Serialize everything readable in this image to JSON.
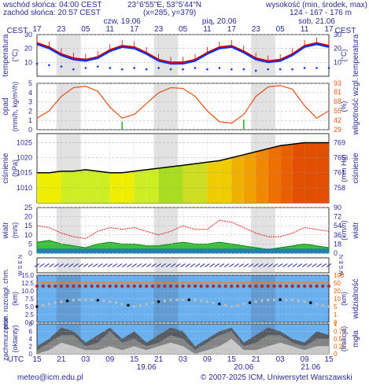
{
  "header": {
    "sunrise": "wschód słońca: 04:00 CEST",
    "sunset": "zachód słońca: 20:57 CEST",
    "coords": "23°6'55\"E, 53°5'44\"N",
    "grid": "(x=285, y=379)",
    "height_title": "wysokość (min, środek, max)",
    "height_values": "124 - 167 - 176 m",
    "tz_left": "CEST",
    "tz_right": "CEST"
  },
  "top_axis": {
    "hours": [
      "17",
      "23",
      "05",
      "11",
      "17",
      "23",
      "05",
      "11",
      "17",
      "23",
      "05",
      "11",
      "17"
    ],
    "days": [
      "czw, 19.06",
      "pią, 20.06",
      "sob, 21.06"
    ]
  },
  "bottom_axis": {
    "tz": "UTC",
    "hours": [
      "15",
      "21",
      "03",
      "09",
      "15",
      "21",
      "03",
      "09",
      "15",
      "21",
      "03",
      "09",
      "15"
    ],
    "days": [
      "19.06",
      "20.06",
      "21.06"
    ]
  },
  "footer": {
    "email": "meteo@icm.edu.pl",
    "copyright": "© 2007-2025 ICM, Uniwersytet Warszawski"
  },
  "colors": {
    "text": "#2b2b8c",
    "temp_max": "#cc0000",
    "temp_mean": "#0033ff",
    "humidity": "#e05a20",
    "pressure_line": "#000000",
    "wind_mean": "#008800",
    "gust": "#dd2222",
    "sky": "#6ab0ee"
  },
  "chart_data": [
    {
      "type": "line",
      "name": "temperature",
      "ylabel_left": "temperatura",
      "unit_left": "(°C)",
      "ylabel_right": "temperatura",
      "unit_right": "(°C)",
      "ylim": [
        0,
        30
      ],
      "yticks": [
        10,
        20,
        30
      ],
      "x_hours_from_start": [
        0,
        3,
        6,
        9,
        12,
        15,
        18,
        21,
        24,
        27,
        30,
        33,
        36,
        39,
        42,
        45,
        48,
        51,
        54,
        57,
        60,
        63,
        66,
        69,
        72
      ],
      "series": [
        {
          "values": [
            24,
            21,
            16,
            13,
            12,
            14,
            19,
            22,
            21,
            17,
            12,
            10,
            10,
            12,
            17,
            21,
            22,
            18,
            13,
            11,
            12,
            16,
            22,
            24,
            22
          ]
        },
        {
          "values": [
            23,
            20,
            15,
            12,
            11,
            13,
            18,
            21,
            20,
            16,
            11,
            9,
            9,
            11,
            16,
            20,
            21,
            17,
            12,
            10,
            11,
            15,
            21,
            23,
            21
          ]
        },
        {
          "values": [
            9,
            8,
            7,
            5,
            6,
            7,
            6,
            5,
            6,
            5,
            6,
            5,
            5,
            6,
            5,
            6,
            5,
            5,
            4,
            5,
            5,
            5,
            6,
            6,
            6
          ]
        }
      ]
    },
    {
      "type": "line",
      "name": "precipitation-humidity",
      "ylabel_left": "opad",
      "unit_left": "(mm/h, kg/m²/h)",
      "ylabel_right": "wilgotność wzgl.",
      "unit_right": "(%)",
      "ylim_left": [
        0,
        5
      ],
      "yticks_left": [
        0,
        1,
        2,
        3,
        4,
        5
      ],
      "ylim_right": [
        29,
        93
      ],
      "yticks_right": [
        29,
        42,
        55,
        68,
        81,
        93
      ],
      "series": [
        {
          "name": "wilgotność",
          "values": [
            45,
            55,
            75,
            87,
            89,
            82,
            60,
            45,
            50,
            65,
            80,
            87,
            86,
            75,
            55,
            40,
            38,
            50,
            75,
            88,
            90,
            85,
            62,
            45,
            55
          ]
        },
        {
          "name": "opad",
          "values": [
            0,
            0,
            0,
            0,
            0,
            0,
            0,
            0.2,
            0,
            0,
            0,
            0,
            0,
            0,
            0,
            0,
            0,
            0.4,
            0,
            0,
            0,
            0,
            0,
            0,
            0
          ]
        }
      ]
    },
    {
      "type": "area",
      "name": "pressure",
      "ylabel_left": "ciśnienie",
      "unit_left": "(hPa)",
      "ylabel_right": "ciśnienie",
      "unit_right": "(mm Hg)",
      "ylim": [
        1005,
        1028
      ],
      "yticks_left": [
        1010,
        1015,
        1020,
        1025
      ],
      "yticks_right": [
        758,
        761,
        765,
        769
      ],
      "values": [
        1015,
        1015,
        1015.5,
        1015.5,
        1016,
        1015.5,
        1015,
        1015,
        1015.5,
        1016,
        1016.5,
        1017,
        1017.5,
        1018,
        1018.5,
        1019,
        1020,
        1021,
        1022,
        1023,
        1024,
        1024.5,
        1025,
        1025,
        1025
      ]
    },
    {
      "type": "area",
      "name": "wind",
      "ylabel_left": "wiatr",
      "unit_left": "(m/s)",
      "ylabel_right": "wiatr",
      "unit_right": "(km/h)",
      "ylim": [
        0,
        25
      ],
      "yticks_left": [
        0,
        5,
        10,
        15,
        20,
        25
      ],
      "yticks_right": [
        0,
        18,
        36,
        54,
        72,
        90
      ],
      "series": [
        {
          "name": "średni",
          "values": [
            6,
            7,
            5,
            4,
            3,
            5,
            6,
            5,
            5,
            4,
            4,
            5,
            6,
            5,
            5,
            6,
            5,
            4,
            3,
            2,
            3,
            4,
            5,
            4,
            3
          ]
        },
        {
          "name": "porywy",
          "values": [
            15,
            14,
            11,
            9,
            8,
            12,
            14,
            13,
            14,
            12,
            10,
            12,
            15,
            13,
            13,
            18,
            17,
            14,
            11,
            9,
            9,
            11,
            14,
            13,
            12
          ]
        }
      ]
    },
    {
      "type": "scatter",
      "name": "wind-direction",
      "ylabel_left": "W S E N",
      "ylabel_right": "W S E N",
      "values": []
    },
    {
      "type": "scatter",
      "name": "cloud-vertical",
      "ylabel_left": "pion. rozciągł. chm.",
      "unit_left": "(km)",
      "ylabel_right": "widzialność",
      "unit_right": "(km)",
      "ylim_left": [
        0,
        15
      ],
      "yticks_left": [
        0,
        2.5,
        5.0,
        7.5,
        10.0,
        12.5,
        15.0
      ],
      "ylim_right": [
        0,
        100
      ],
      "yticks_right": [
        0,
        1,
        5,
        10,
        20,
        50,
        100
      ],
      "values": []
    },
    {
      "type": "area",
      "name": "cloud-cover",
      "ylabel_left": "zachmurzenie",
      "unit_left": "(oktanty)",
      "ylabel_right": "mgła",
      "unit_right": "(frakcja)",
      "ylim_left": [
        0,
        8
      ],
      "yticks_left": [
        0,
        2,
        4,
        6,
        8
      ],
      "ylim_right": [
        0,
        1
      ],
      "yticks_right": [
        0,
        0.25,
        0.5,
        0.75,
        1
      ],
      "series": [
        {
          "name": "niskie",
          "values": [
            2,
            4,
            7,
            6,
            3,
            5,
            7,
            4,
            6,
            3,
            5,
            7,
            6,
            2,
            4,
            6,
            7,
            3,
            5,
            7,
            6,
            4,
            3,
            6,
            5
          ]
        },
        {
          "name": "średnie",
          "values": [
            1,
            3,
            5,
            5,
            2,
            3,
            6,
            3,
            4,
            2,
            3,
            5,
            4,
            1,
            3,
            5,
            6,
            2,
            3,
            5,
            5,
            3,
            2,
            4,
            4
          ]
        },
        {
          "name": "wysokie",
          "values": [
            0,
            1,
            3,
            2,
            1,
            1,
            2,
            1,
            2,
            1,
            2,
            3,
            2,
            0,
            1,
            2,
            4,
            1,
            1,
            2,
            3,
            2,
            1,
            2,
            2
          ]
        }
      ]
    }
  ]
}
